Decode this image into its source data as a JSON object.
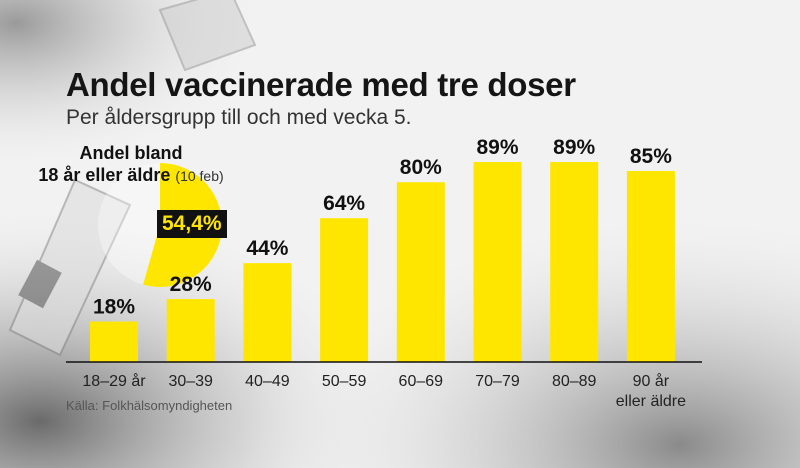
{
  "title": "Andel vaccinerade med tre doser",
  "subtitle": "Per åldersgrupp till och med vecka 5.",
  "source": "Källa: Folkhälsomyndigheten",
  "pie": {
    "label_line1": "Andel bland",
    "label_line2": "18 år eller äldre",
    "date": "(10 feb)",
    "value": 54.4,
    "value_label": "54,4%",
    "color": "#ffe600"
  },
  "colors": {
    "bar": "#ffe600",
    "axis": "#111111"
  },
  "chart_data": {
    "type": "bar",
    "title": "Andel vaccinerade med tre doser",
    "subtitle": "Per åldersgrupp till och med vecka 5.",
    "categories": [
      [
        "18–29 år"
      ],
      [
        "30–39"
      ],
      [
        "40–49"
      ],
      [
        "50–59"
      ],
      [
        "60–69"
      ],
      [
        "70–79"
      ],
      [
        "80–89"
      ],
      [
        "90 år",
        "eller äldre"
      ]
    ],
    "values": [
      18,
      28,
      44,
      64,
      80,
      89,
      89,
      85
    ],
    "value_labels": [
      "18%",
      "28%",
      "44%",
      "64%",
      "80%",
      "89%",
      "89%",
      "85%"
    ],
    "ylim": [
      0,
      100
    ],
    "grid": false,
    "legend": "none"
  }
}
